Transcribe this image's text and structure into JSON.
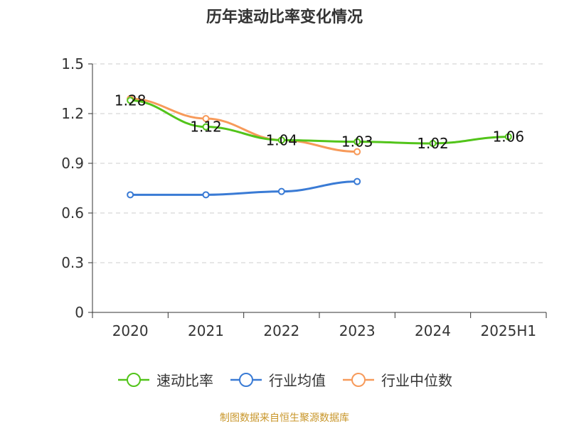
{
  "chart_data": {
    "type": "line",
    "title": "历年速动比率变化情况",
    "categories": [
      "2020",
      "2021",
      "2022",
      "2023",
      "2024",
      "2025H1"
    ],
    "ylim": [
      0,
      1.5
    ],
    "yticks": [
      "0",
      "0.3",
      "0.6",
      "0.9",
      "1.2",
      "1.5"
    ],
    "grid": true,
    "legend_position": "bottom",
    "series": [
      {
        "name": "速动比率",
        "color": "#52c41a",
        "values": [
          1.28,
          1.12,
          1.04,
          1.03,
          1.02,
          1.06
        ],
        "labels": [
          "1.28",
          "1.12",
          "1.04",
          "1.03",
          "1.02",
          "1.06"
        ]
      },
      {
        "name": "行业均值",
        "color": "#3a7bd5",
        "values": [
          0.71,
          0.71,
          0.73,
          0.79,
          null,
          null
        ]
      },
      {
        "name": "行业中位数",
        "color": "#f79a5a",
        "values": [
          1.29,
          1.17,
          1.04,
          0.97,
          null,
          null
        ]
      }
    ]
  },
  "source_note": "制图数据来自恒生聚源数据库"
}
